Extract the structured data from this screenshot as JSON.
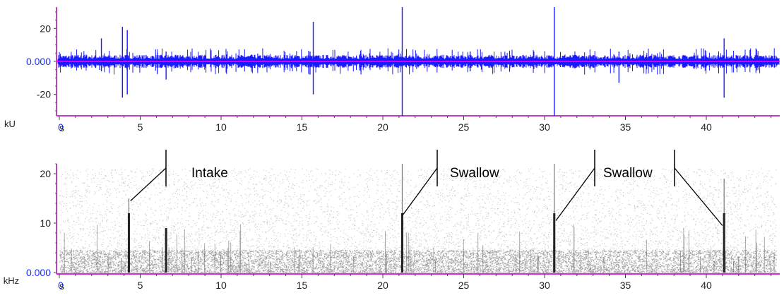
{
  "chart_data": [
    {
      "type": "line",
      "title": "",
      "xlabel": "s",
      "ylabel": "kU",
      "xlim": [
        0,
        44.5
      ],
      "ylim": [
        -33,
        33
      ],
      "x_ticks": [
        "0",
        "5",
        "10",
        "15",
        "20",
        "25",
        "30",
        "35",
        "40"
      ],
      "y_ticks": [
        "20",
        "0.000",
        "-20"
      ],
      "baseline_color": "#ff00ff",
      "signal_color": "#1a1aff",
      "spikes": [
        {
          "x": 2.6,
          "ymax": 14,
          "ymin": -6
        },
        {
          "x": 3.9,
          "ymax": 21,
          "ymin": -22
        },
        {
          "x": 4.2,
          "ymax": 19,
          "ymin": -20
        },
        {
          "x": 6.6,
          "ymax": 6,
          "ymin": -11
        },
        {
          "x": 15.5,
          "ymax": 6,
          "ymin": -8
        },
        {
          "x": 15.7,
          "ymax": 24,
          "ymin": -20
        },
        {
          "x": 21.2,
          "ymax": 34,
          "ymin": -33
        },
        {
          "x": 25.4,
          "ymax": 6,
          "ymin": -6
        },
        {
          "x": 30.6,
          "ymax": 34,
          "ymin": -33
        },
        {
          "x": 34.6,
          "ymax": 6,
          "ymin": -13
        },
        {
          "x": 41.1,
          "ymax": 14,
          "ymin": -22
        }
      ]
    },
    {
      "type": "heatmap",
      "title": "",
      "xlabel": "s",
      "ylabel": "kHz",
      "xlim": [
        0,
        44.5
      ],
      "ylim": [
        0,
        22
      ],
      "x_ticks": [
        "0",
        "5",
        "10",
        "15",
        "20",
        "25",
        "30",
        "35",
        "40"
      ],
      "y_ticks": [
        "20",
        "10",
        "0.000"
      ],
      "events": [
        {
          "x": 4.3,
          "fmax": 15
        },
        {
          "x": 6.6,
          "fmax": 9
        },
        {
          "x": 21.2,
          "fmax": 22
        },
        {
          "x": 30.6,
          "fmax": 22
        },
        {
          "x": 41.1,
          "fmax": 19
        }
      ],
      "annotations": [
        {
          "text": "Intake",
          "target_x": 4.4,
          "target_y": 14.5
        },
        {
          "text": "Swallow",
          "target_x": 21.2,
          "target_y": 11.5
        },
        {
          "text": "Swallow",
          "target_x": 30.7,
          "target_y": 10.5
        },
        {
          "text": "Swallow",
          "target_x": 41.0,
          "target_y": 9.5
        }
      ]
    }
  ]
}
